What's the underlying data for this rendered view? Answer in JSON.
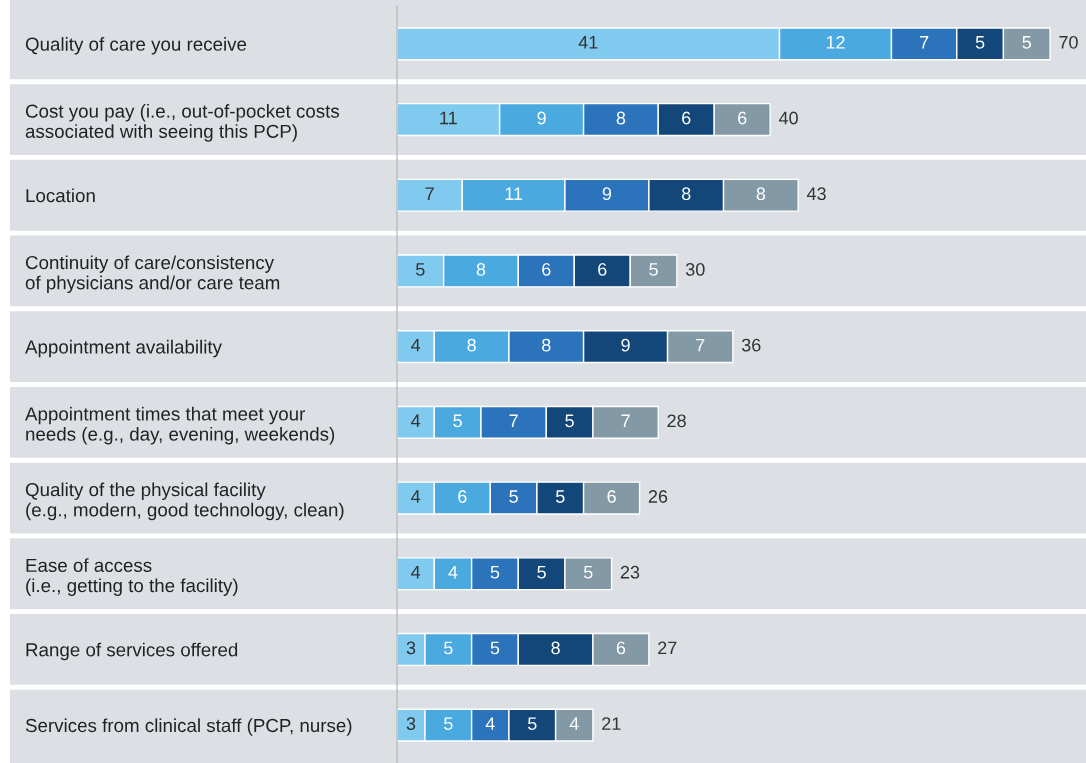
{
  "chart_data": {
    "type": "bar",
    "orientation": "horizontal",
    "stacked": true,
    "data_labels": true,
    "categories": [
      "Quality of care you receive",
      "Cost you pay (i.e., out-of-pocket costs\nassociated with seeing this PCP)",
      "Location",
      "Continuity of care/consistency\nof physicians and/or care team",
      "Appointment availability",
      "Appointment times that meet your\nneeds (e.g., day, evening, weekends)",
      "Quality of the physical facility\n(e.g., modern, good technology, clean)",
      "Ease of access\n(i.e., getting to the facility)",
      "Range of services offered",
      "Services from clinical staff (PCP, nurse)"
    ],
    "series": [
      {
        "color": "#80c9ef",
        "values": [
          41,
          11,
          7,
          5,
          4,
          4,
          4,
          4,
          3,
          3
        ]
      },
      {
        "color": "#4aa9df",
        "values": [
          12,
          9,
          11,
          8,
          8,
          5,
          6,
          4,
          5,
          5
        ]
      },
      {
        "color": "#2b73ba",
        "values": [
          7,
          8,
          9,
          6,
          8,
          7,
          5,
          5,
          5,
          4
        ]
      },
      {
        "color": "#134679",
        "values": [
          5,
          6,
          8,
          6,
          9,
          5,
          5,
          5,
          8,
          5
        ]
      },
      {
        "color": "#8399a6",
        "values": [
          5,
          6,
          8,
          5,
          7,
          7,
          6,
          5,
          6,
          4
        ]
      }
    ],
    "totals": [
      "70",
      "40",
      "43",
      "30",
      "36",
      "28",
      "26",
      "23",
      "27",
      "21"
    ]
  }
}
